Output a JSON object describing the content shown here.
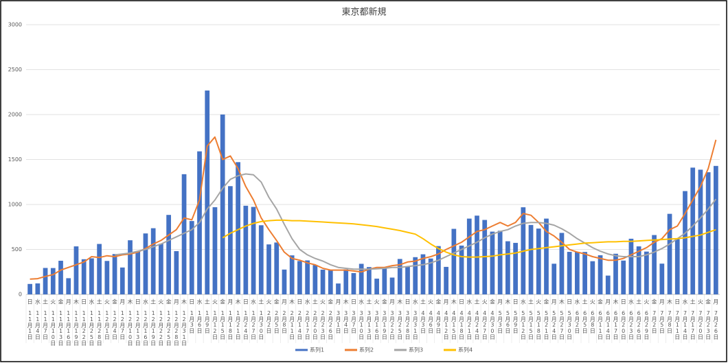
{
  "chart_data": {
    "type": "bar_line",
    "title": "東京都新規",
    "categories": [
      "11月1日",
      "11月4日",
      "11月7日",
      "11月10日",
      "11月13日",
      "11月16日",
      "11月19日",
      "11月22日",
      "11月25日",
      "11月28日",
      "12月1日",
      "12月4日",
      "12月7日",
      "12月10日",
      "12月13日",
      "12月16日",
      "12月19日",
      "12月22日",
      "12月25日",
      "12月28日",
      "12月31日",
      "1月3日",
      "1月6日",
      "1月9日",
      "1月12日",
      "1月15日",
      "1月18日",
      "1月21日",
      "1月24日",
      "1月27日",
      "1月30日",
      "2月2日",
      "2月5日",
      "2月8日",
      "2月11日",
      "2月14日",
      "2月17日",
      "2月20日",
      "2月23日",
      "2月26日",
      "3月1日",
      "3月4日",
      "3月7日",
      "3月10日",
      "3月13日",
      "3月16日",
      "3月19日",
      "3月22日",
      "3月25日",
      "3月28日",
      "3月31日",
      "4月3日",
      "4月6日",
      "4月9日",
      "4月12日",
      "4月15日",
      "4月18日",
      "4月21日",
      "4月24日",
      "4月27日",
      "4月30日",
      "5月3日",
      "5月6日",
      "5月9日",
      "5月12日",
      "5月15日",
      "5月18日",
      "5月21日",
      "5月24日",
      "5月27日",
      "5月30日",
      "6月2日",
      "6月5日",
      "6月8日",
      "6月11日",
      "6月14日",
      "6月17日",
      "6月20日",
      "6月23日",
      "6月26日",
      "6月29日",
      "7月2日",
      "7月5日",
      "7月8日",
      "7月11日",
      "7月14日",
      "7月17日",
      "7月20日",
      "7月23日",
      "7月26日"
    ],
    "weekdays": [
      "日",
      "水",
      "土",
      "火",
      "金",
      "月",
      "木",
      "日",
      "水",
      "土",
      "火",
      "金",
      "月",
      "木",
      "日",
      "水",
      "土",
      "火",
      "金",
      "月",
      "木",
      "日",
      "水",
      "土",
      "火",
      "金",
      "月",
      "木",
      "日",
      "水",
      "土",
      "火",
      "金",
      "月",
      "木",
      "日",
      "水",
      "土",
      "火",
      "金",
      "月",
      "木",
      "日",
      "水",
      "土",
      "火",
      "金",
      "月",
      "木",
      "日",
      "水",
      "土",
      "火",
      "金",
      "月",
      "木",
      "日",
      "水",
      "土",
      "火",
      "金",
      "月",
      "木",
      "日",
      "水",
      "土",
      "火",
      "金",
      "月",
      "木",
      "日",
      "水",
      "土",
      "火",
      "金",
      "月",
      "木",
      "日",
      "水",
      "土",
      "火",
      "金",
      "月",
      "木",
      "日",
      "水",
      "土",
      "火",
      "金",
      "月"
    ],
    "series": [
      {
        "name": "系列1",
        "color": "#4472c4",
        "kind": "bar",
        "values": [
          116,
          122,
          294,
          293,
          374,
          180,
          534,
          391,
          401,
          561,
          372,
          449,
          299,
          602,
          480,
          678,
          736,
          563,
          884,
          481,
          1337,
          816,
          1591,
          2268,
          970,
          2001,
          1204,
          1471,
          986,
          973,
          769,
          556,
          577,
          276,
          434,
          371,
          378,
          327,
          275,
          270,
          121,
          279,
          237,
          340,
          304,
          175,
          303,
          187,
          394,
          313,
          414,
          446,
          399,
          537,
          306,
          729,
          543,
          843,
          876,
          828,
          698,
          708,
          591,
          573,
          969,
          772,
          732,
          843,
          341,
          684,
          473,
          471,
          472,
          369,
          435,
          209,
          452,
          376,
          619,
          534,
          476,
          660,
          342,
          896,
          614,
          1149,
          1410,
          1387,
          1359,
          1429
        ]
      },
      {
        "name": "系列2",
        "color": "#ed7d31",
        "kind": "line",
        "values": [
          170,
          175,
          200,
          220,
          270,
          300,
          330,
          360,
          420,
          410,
          430,
          420,
          440,
          450,
          470,
          510,
          560,
          600,
          660,
          720,
          850,
          830,
          1050,
          1650,
          1750,
          1500,
          1540,
          1400,
          1200,
          1050,
          850,
          720,
          600,
          470,
          400,
          380,
          350,
          330,
          290,
          270,
          270,
          270,
          260,
          250,
          280,
          300,
          300,
          320,
          330,
          360,
          370,
          400,
          420,
          450,
          500,
          540,
          580,
          640,
          700,
          720,
          760,
          800,
          760,
          800,
          900,
          880,
          800,
          700,
          650,
          580,
          500,
          470,
          450,
          420,
          400,
          380,
          380,
          400,
          440,
          480,
          520,
          580,
          620,
          720,
          760,
          900,
          1050,
          1200,
          1400,
          1720
        ]
      },
      {
        "name": "系列3",
        "color": "#a5a5a5",
        "kind": "line",
        "values": [
          null,
          null,
          null,
          null,
          null,
          null,
          null,
          null,
          null,
          null,
          null,
          440,
          450,
          460,
          480,
          500,
          530,
          560,
          600,
          640,
          680,
          720,
          800,
          950,
          1050,
          1180,
          1280,
          1320,
          1340,
          1330,
          1250,
          1080,
          950,
          780,
          620,
          500,
          440,
          400,
          370,
          330,
          300,
          290,
          280,
          280,
          280,
          285,
          290,
          300,
          300,
          310,
          320,
          330,
          350,
          380,
          420,
          460,
          500,
          540,
          580,
          630,
          670,
          700,
          720,
          760,
          790,
          800,
          800,
          790,
          770,
          730,
          680,
          620,
          570,
          520,
          480,
          450,
          430,
          420,
          420,
          420,
          440,
          470,
          510,
          560,
          620,
          680,
          760,
          850,
          950,
          1060
        ]
      },
      {
        "name": "系列4",
        "color": "#ffc000",
        "kind": "line",
        "values": [
          null,
          null,
          null,
          null,
          null,
          null,
          null,
          null,
          null,
          null,
          null,
          null,
          null,
          null,
          null,
          null,
          null,
          null,
          null,
          null,
          null,
          null,
          null,
          null,
          null,
          630,
          680,
          720,
          760,
          790,
          810,
          820,
          825,
          825,
          820,
          820,
          815,
          810,
          805,
          800,
          795,
          790,
          785,
          775,
          765,
          755,
          740,
          725,
          710,
          690,
          670,
          620,
          560,
          510,
          470,
          440,
          420,
          415,
          415,
          420,
          425,
          440,
          450,
          460,
          480,
          500,
          510,
          520,
          530,
          540,
          550,
          560,
          570,
          575,
          580,
          585,
          585,
          590,
          590,
          595,
          600,
          605,
          610,
          615,
          620,
          630,
          645,
          660,
          690,
          720
        ]
      }
    ],
    "ylim": [
      0,
      3000
    ],
    "yticks": [
      0,
      500,
      1000,
      1500,
      2000,
      2500,
      3000
    ],
    "grid": true,
    "legend": "bottom"
  }
}
